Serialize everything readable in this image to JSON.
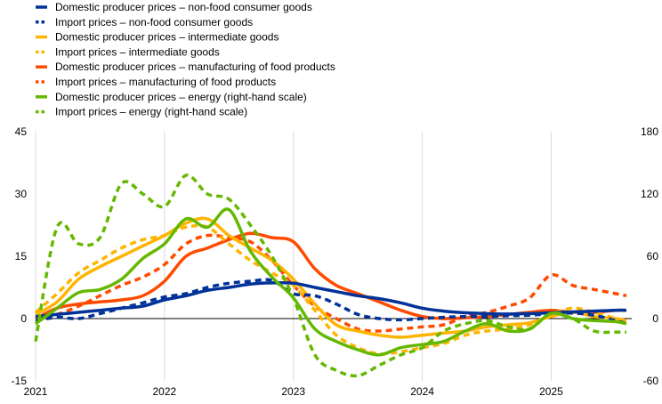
{
  "chart_data": {
    "type": "line",
    "title": "",
    "xlabel": "",
    "ylabel": "",
    "x_ticks": [
      "2021",
      "2022",
      "2023",
      "2024",
      "2025"
    ],
    "ylim_left": [
      -15,
      45
    ],
    "ylim_right": [
      -60,
      180
    ],
    "y_ticks_left": [
      -15,
      0,
      15,
      30,
      45
    ],
    "y_ticks_right": [
      -60,
      0,
      60,
      120,
      180
    ],
    "grid": "vertical",
    "legend_position": "top-left",
    "x": [
      "2021-01",
      "2021-03",
      "2021-05",
      "2021-07",
      "2021-09",
      "2021-11",
      "2022-01",
      "2022-03",
      "2022-05",
      "2022-07",
      "2022-09",
      "2022-11",
      "2023-01",
      "2023-03",
      "2023-05",
      "2023-07",
      "2023-09",
      "2023-11",
      "2024-01",
      "2024-03",
      "2024-05",
      "2024-07",
      "2024-09",
      "2024-11",
      "2025-01",
      "2025-03",
      "2025-05",
      "2025-07",
      "2025-08"
    ],
    "series": [
      {
        "name": "Domestic producer prices – non-food consumer goods",
        "color": "#003299",
        "dash": "solid",
        "axis": "left",
        "values": [
          0.5,
          1,
          1.5,
          2,
          2.5,
          3,
          4.5,
          5.5,
          6.8,
          7.5,
          8.3,
          8.6,
          8.5,
          7.5,
          6.5,
          5.5,
          4.8,
          3.8,
          2.5,
          1.8,
          1.4,
          1.2,
          1.1,
          1.2,
          1.4,
          1.6,
          1.8,
          2,
          2
        ]
      },
      {
        "name": "Import prices – non-food consumer goods",
        "color": "#003299",
        "dash": "dotted",
        "axis": "left",
        "values": [
          -0.5,
          0.3,
          0,
          1.2,
          2.5,
          3.8,
          5.2,
          6,
          7.5,
          8.5,
          9,
          9.2,
          6,
          5.5,
          3.5,
          1,
          0,
          -0.3,
          0,
          0.3,
          0.5,
          0.5,
          0.7,
          0.8,
          1.2,
          1.3,
          0.8,
          -0.5,
          -1.2
        ]
      },
      {
        "name": "Domestic producer prices – intermediate goods",
        "color": "#FFB400",
        "dash": "solid",
        "axis": "left",
        "values": [
          1,
          4,
          9.5,
          12.5,
          15,
          17.5,
          20,
          23,
          24,
          20,
          17,
          14,
          9.5,
          3.5,
          -1.5,
          -3,
          -4,
          -4.5,
          -4,
          -3.5,
          -3,
          -2,
          -1.5,
          -1,
          0.5,
          1.5,
          0.5,
          0,
          -0.5
        ]
      },
      {
        "name": "Import prices – intermediate goods",
        "color": "#FFB400",
        "dash": "dotted",
        "axis": "left",
        "values": [
          1.5,
          6,
          11,
          14,
          17,
          19,
          20,
          22,
          22,
          18,
          14,
          11,
          8,
          2,
          -4,
          -7,
          -8.5,
          -8,
          -7,
          -6,
          -4,
          -3,
          -2.5,
          -1.5,
          1,
          2.5,
          1.5,
          0,
          -1
        ]
      },
      {
        "name": "Domestic producer prices – manufacturing of food products",
        "color": "#FF4B00",
        "dash": "solid",
        "axis": "left",
        "values": [
          0,
          2.5,
          3.5,
          4,
          4.5,
          5.5,
          9,
          15,
          17,
          19,
          20.5,
          19.5,
          18.5,
          12,
          8,
          6,
          4,
          2,
          0.5,
          0,
          0.2,
          0.5,
          1,
          1.5,
          2,
          1.5,
          1.5,
          2,
          2
        ]
      },
      {
        "name": "Import prices – manufacturing of food products",
        "color": "#FF4B00",
        "dash": "dotted",
        "axis": "left",
        "values": [
          0,
          1,
          3,
          5.5,
          8,
          10,
          13,
          18,
          20,
          19.5,
          18.5,
          14,
          8,
          3,
          0,
          -2.5,
          -3,
          -2.5,
          -2,
          -1.5,
          0.5,
          1.5,
          3,
          5,
          10.5,
          8,
          7,
          6,
          5.5
        ]
      },
      {
        "name": "Domestic producer prices – energy (right-hand scale)",
        "color": "#65B800",
        "dash": "solid",
        "axis": "right",
        "values": [
          -5,
          10,
          25,
          28,
          38,
          58,
          72,
          96,
          88,
          105,
          65,
          40,
          20,
          -10,
          -22,
          -30,
          -35,
          -28,
          -25,
          -22,
          -12,
          -5,
          -12,
          -10,
          5,
          0,
          -2,
          -3,
          -5
        ]
      },
      {
        "name": "Import prices – energy (right-hand scale)",
        "color": "#65B800",
        "dash": "dotted",
        "axis": "right",
        "values": [
          -22,
          88,
          72,
          78,
          130,
          120,
          108,
          138,
          120,
          115,
          90,
          60,
          20,
          -35,
          -50,
          -55,
          -45,
          -35,
          -28,
          -12,
          -5,
          -2,
          -8,
          -10,
          5,
          0,
          -12,
          -13,
          -13
        ]
      }
    ]
  }
}
